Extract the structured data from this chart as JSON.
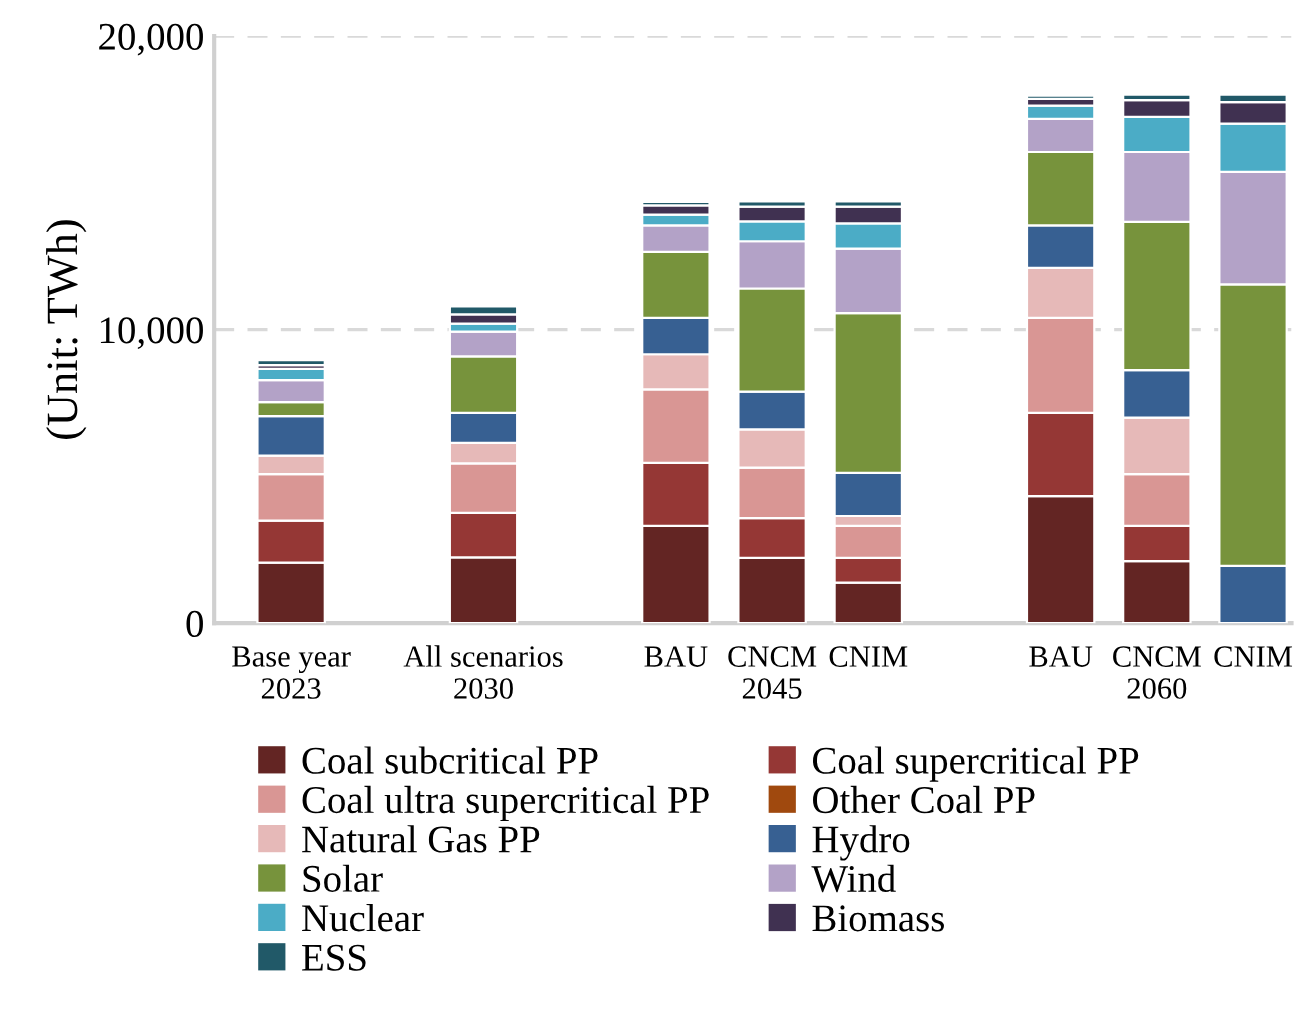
{
  "chart_data": {
    "type": "bar",
    "stacked": true,
    "ylabel": "(Unit: TWh)",
    "categories": [
      "Base year\n2023",
      null,
      "All scenarios\n2030",
      null,
      "BAU",
      "CNCM\n2045",
      "CNIM",
      null,
      "BAU",
      "CNCM\n2060",
      "CNIM"
    ],
    "ylim": [
      0,
      20000
    ],
    "yticks": [
      0,
      {
        "value": 10000,
        "label": "10,000"
      },
      {
        "value": 20000,
        "label": "20,000"
      }
    ],
    "grid": "y",
    "legend": "bottom",
    "series": [
      {
        "name": "Coal subcritical PP",
        "color": "#632523",
        "values": [
          2060,
          null,
          2240,
          null,
          3310,
          2220,
          1380,
          null,
          4330,
          2110,
          0
        ]
      },
      {
        "name": "Coal supercritical PP",
        "color": "#953735",
        "values": [
          1430,
          null,
          1520,
          null,
          2150,
          1360,
          840,
          null,
          2830,
          1200,
          0
        ]
      },
      {
        "name": "Coal ultra supercritical PP",
        "color": "#d99694",
        "values": [
          1590,
          null,
          1680,
          null,
          2500,
          1720,
          1090,
          null,
          3240,
          1770,
          0
        ]
      },
      {
        "name": "Other Coal PP",
        "color": "#a0490e",
        "values": [
          0,
          null,
          0,
          null,
          0,
          0,
          0,
          null,
          0,
          0,
          0
        ]
      },
      {
        "name": "Natural Gas PP",
        "color": "#e6b9b8",
        "values": [
          630,
          null,
          700,
          null,
          1200,
          1300,
          340,
          null,
          1700,
          1920,
          0
        ]
      },
      {
        "name": "Hydro",
        "color": "#376092",
        "values": [
          1340,
          null,
          1020,
          null,
          1240,
          1290,
          1470,
          null,
          1450,
          1620,
          1950
        ]
      },
      {
        "name": "Solar",
        "color": "#77933c",
        "values": [
          480,
          null,
          1930,
          null,
          2250,
          3510,
          5440,
          null,
          2500,
          5050,
          9590
        ]
      },
      {
        "name": "Wind",
        "color": "#b3a2c7",
        "values": [
          750,
          null,
          840,
          null,
          900,
          1610,
          2200,
          null,
          1130,
          2380,
          3830
        ]
      },
      {
        "name": "Nuclear",
        "color": "#4bacc6",
        "values": [
          380,
          null,
          270,
          null,
          370,
          680,
          860,
          null,
          450,
          1200,
          1650
        ]
      },
      {
        "name": "Biomass",
        "color": "#403151",
        "values": [
          130,
          null,
          320,
          null,
          310,
          500,
          570,
          null,
          230,
          570,
          730
        ]
      },
      {
        "name": "ESS",
        "color": "#215968",
        "values": [
          170,
          null,
          270,
          null,
          120,
          180,
          180,
          null,
          110,
          180,
          250
        ]
      }
    ]
  }
}
